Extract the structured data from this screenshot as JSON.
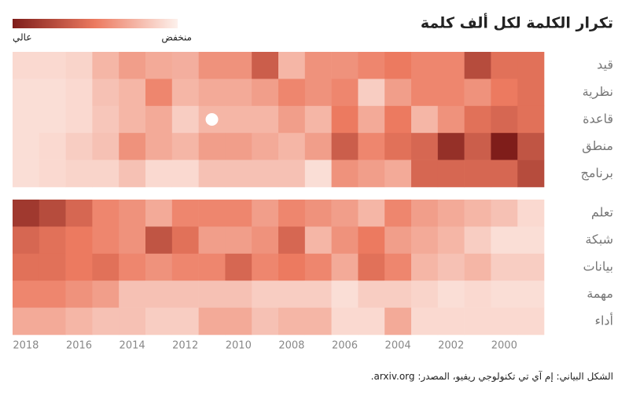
{
  "chart_data": {
    "type": "heatmap",
    "title": "تكرار الكلمة لكل ألف كلمة",
    "legend": {
      "high": "عالي",
      "low": "منخفض"
    },
    "colors": {
      "low": "#fdf1ec",
      "mid": "#ec7a60",
      "high": "#7f1d1a"
    },
    "zlim": [
      0,
      100
    ],
    "x": [
      2018,
      null,
      2016,
      null,
      2014,
      null,
      2012,
      null,
      2010,
      null,
      2008,
      null,
      2006,
      null,
      2004,
      null,
      2002,
      null,
      2000,
      null
    ],
    "series": [
      {
        "name": "قيد",
        "values": [
          10,
          10,
          12,
          25,
          35,
          30,
          28,
          40,
          40,
          65,
          25,
          40,
          40,
          45,
          50,
          45,
          45,
          75,
          55,
          55
        ]
      },
      {
        "name": "نظرية",
        "values": [
          8,
          8,
          10,
          20,
          25,
          45,
          25,
          30,
          30,
          35,
          45,
          40,
          45,
          15,
          35,
          45,
          45,
          40,
          50,
          55
        ]
      },
      {
        "name": "قاعدة",
        "values": [
          8,
          8,
          10,
          18,
          25,
          30,
          15,
          25,
          25,
          25,
          35,
          25,
          50,
          30,
          50,
          25,
          40,
          55,
          60,
          55
        ]
      },
      {
        "name": "منطق",
        "values": [
          8,
          10,
          15,
          20,
          40,
          30,
          25,
          35,
          35,
          30,
          25,
          35,
          65,
          45,
          55,
          60,
          90,
          65,
          100,
          70
        ]
      },
      {
        "name": "برنامج",
        "values": [
          8,
          10,
          12,
          12,
          20,
          10,
          10,
          20,
          20,
          20,
          20,
          8,
          40,
          35,
          30,
          60,
          60,
          60,
          60,
          75
        ]
      },
      {
        "name": "تعلم",
        "values": [
          85,
          75,
          60,
          45,
          40,
          30,
          45,
          45,
          45,
          35,
          45,
          40,
          35,
          25,
          45,
          35,
          30,
          25,
          20,
          10
        ]
      },
      {
        "name": "شبكة",
        "values": [
          60,
          55,
          50,
          45,
          40,
          70,
          55,
          35,
          35,
          40,
          60,
          25,
          40,
          50,
          35,
          30,
          25,
          15,
          8,
          8
        ]
      },
      {
        "name": "بيانات",
        "values": [
          55,
          55,
          50,
          55,
          45,
          40,
          45,
          45,
          60,
          45,
          50,
          45,
          30,
          55,
          45,
          25,
          20,
          25,
          15,
          15
        ]
      },
      {
        "name": "مهمة",
        "values": [
          45,
          45,
          40,
          35,
          20,
          20,
          20,
          20,
          20,
          15,
          15,
          15,
          8,
          15,
          15,
          12,
          8,
          10,
          8,
          8
        ]
      },
      {
        "name": "أداء",
        "values": [
          30,
          30,
          25,
          20,
          20,
          15,
          15,
          30,
          30,
          20,
          25,
          25,
          10,
          10,
          30,
          10,
          10,
          10,
          10,
          10
        ]
      }
    ],
    "source": "الشكل البياني: إم آي تي تكنولوجي ريفيو، المصدر: arxiv.org."
  }
}
